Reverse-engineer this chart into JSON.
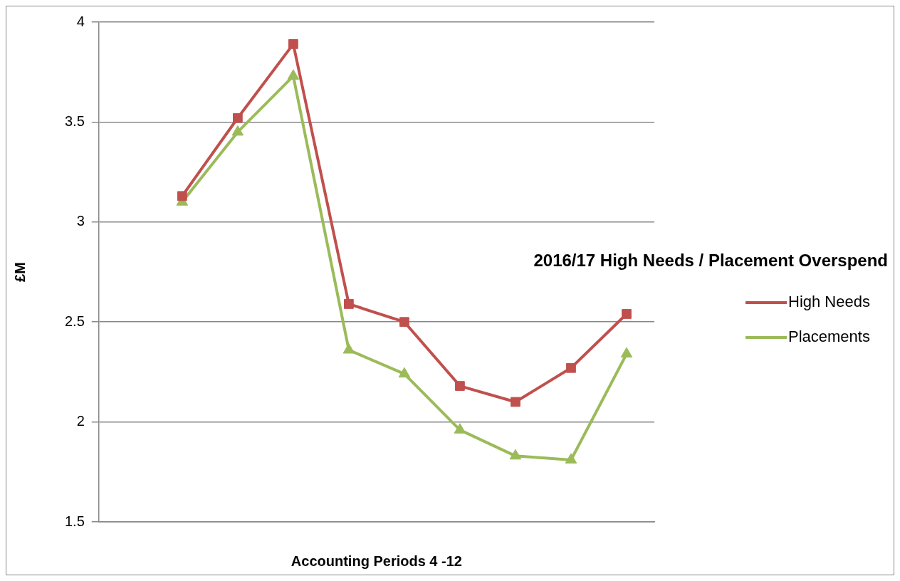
{
  "chart_data": {
    "type": "line",
    "title": "2016/17 High Needs / Placement Overspend",
    "xlabel": "Accounting Periods 4 -12",
    "ylabel": "£M",
    "categories": [
      null,
      null,
      null,
      null,
      null,
      null,
      null,
      null,
      null,
      null
    ],
    "series": [
      {
        "name": "High Needs",
        "color": "#c0504d",
        "marker": "square",
        "values": [
          null,
          3.13,
          3.52,
          3.89,
          2.59,
          2.5,
          2.18,
          2.1,
          2.27,
          2.54
        ]
      },
      {
        "name": "Placements",
        "color": "#9bbb59",
        "marker": "triangle",
        "values": [
          null,
          3.1,
          3.45,
          3.73,
          2.36,
          2.24,
          1.96,
          1.83,
          1.81,
          2.34
        ]
      }
    ],
    "ylim": [
      1.5,
      4
    ],
    "yticks": [
      1.5,
      2,
      2.5,
      3,
      3.5,
      4
    ],
    "grid": "y",
    "legend": "right",
    "line_style": "solid"
  }
}
